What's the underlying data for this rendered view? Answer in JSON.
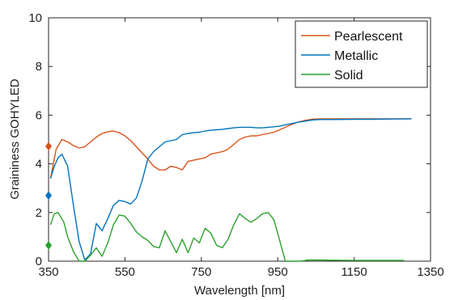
{
  "chart_data": {
    "type": "line",
    "title": "",
    "xlabel": "Wavelength [nm]",
    "ylabel": "Graininess GOHYLED",
    "xlim": [
      350,
      1350
    ],
    "ylim": [
      0,
      10
    ],
    "xticks": [
      350,
      550,
      750,
      950,
      1150,
      1350
    ],
    "yticks": [
      0,
      2,
      4,
      6,
      8,
      10
    ],
    "xtick_labels": [
      "350",
      "550",
      "750",
      "950",
      "1150",
      "1350"
    ],
    "ytick_labels": [
      "0",
      "2",
      "4",
      "6",
      "8",
      "10"
    ],
    "grid": false,
    "legend": {
      "position": "top-right",
      "entries": [
        "Pearlescent",
        "Metallic",
        "Solid"
      ]
    },
    "series": [
      {
        "name": "Pearlescent",
        "color": "#d95319",
        "x": [
          355,
          370,
          385,
          400,
          415,
          430,
          445,
          460,
          475,
          490,
          505,
          520,
          535,
          550,
          565,
          580,
          595,
          610,
          625,
          640,
          655,
          670,
          685,
          700,
          715,
          730,
          745,
          760,
          775,
          790,
          805,
          820,
          835,
          850,
          865,
          880,
          895,
          910,
          925,
          940,
          955,
          970,
          985,
          1000,
          1020,
          1040,
          1060,
          1100,
          1150,
          1200,
          1250,
          1300
        ],
        "values": [
          3.4,
          4.6,
          5.0,
          4.9,
          4.75,
          4.65,
          4.7,
          4.9,
          5.1,
          5.25,
          5.32,
          5.35,
          5.28,
          5.15,
          4.95,
          4.7,
          4.45,
          4.2,
          3.9,
          3.75,
          3.75,
          3.9,
          3.85,
          3.75,
          4.1,
          4.15,
          4.2,
          4.25,
          4.4,
          4.45,
          4.5,
          4.6,
          4.8,
          5.0,
          5.1,
          5.15,
          5.15,
          5.2,
          5.25,
          5.3,
          5.4,
          5.5,
          5.6,
          5.7,
          5.78,
          5.83,
          5.85,
          5.85,
          5.85,
          5.85,
          5.85,
          5.85
        ]
      },
      {
        "name": "Metallic",
        "color": "#0072bd",
        "x": [
          355,
          365,
          375,
          385,
          400,
          415,
          430,
          445,
          460,
          475,
          490,
          505,
          520,
          535,
          550,
          565,
          580,
          595,
          610,
          625,
          640,
          655,
          670,
          685,
          700,
          715,
          730,
          745,
          760,
          775,
          790,
          805,
          820,
          835,
          850,
          865,
          880,
          895,
          910,
          925,
          940,
          955,
          970,
          985,
          1000,
          1020,
          1040,
          1060,
          1100,
          1150,
          1200,
          1250,
          1300
        ],
        "values": [
          3.4,
          3.9,
          4.25,
          4.4,
          3.9,
          2.3,
          0.8,
          0.05,
          0.3,
          1.55,
          1.25,
          1.75,
          2.3,
          2.5,
          2.45,
          2.35,
          2.6,
          3.3,
          4.2,
          4.5,
          4.7,
          4.9,
          4.95,
          5.0,
          5.2,
          5.25,
          5.28,
          5.3,
          5.35,
          5.38,
          5.4,
          5.42,
          5.45,
          5.48,
          5.5,
          5.5,
          5.5,
          5.48,
          5.48,
          5.5,
          5.52,
          5.55,
          5.6,
          5.65,
          5.7,
          5.75,
          5.8,
          5.82,
          5.82,
          5.83,
          5.83,
          5.84,
          5.85
        ]
      },
      {
        "name": "Solid",
        "color": "#2ca02c",
        "x": [
          355,
          365,
          375,
          390,
          400,
          415,
          430,
          445,
          460,
          475,
          490,
          505,
          520,
          535,
          550,
          565,
          580,
          595,
          610,
          625,
          640,
          655,
          670,
          685,
          700,
          715,
          730,
          745,
          760,
          775,
          790,
          805,
          820,
          835,
          850,
          865,
          880,
          895,
          910,
          925,
          940,
          955,
          970,
          990,
          1010,
          1030,
          1060,
          1100,
          1150,
          1200,
          1250,
          1280
        ],
        "values": [
          1.5,
          1.95,
          2.0,
          1.6,
          1.0,
          0.4,
          0.0,
          0.0,
          0.25,
          0.55,
          0.2,
          0.75,
          1.5,
          1.9,
          1.85,
          1.55,
          1.2,
          1.0,
          0.85,
          0.6,
          0.55,
          1.25,
          0.8,
          0.35,
          0.9,
          0.35,
          0.95,
          0.75,
          1.35,
          1.15,
          0.65,
          0.55,
          0.9,
          1.5,
          1.95,
          1.75,
          1.6,
          1.75,
          1.95,
          2.0,
          1.7,
          0.85,
          0.0,
          0.0,
          0.0,
          0.05,
          0.05,
          0.04,
          0.03,
          0.03,
          0.03,
          0.03
        ]
      }
    ],
    "markers": [
      {
        "series": "Pearlescent",
        "x": 350,
        "y": 4.72,
        "shape": "diamond",
        "color": "#d95319"
      },
      {
        "series": "Metallic",
        "x": 350,
        "y": 2.7,
        "shape": "diamond",
        "color": "#0072bd"
      },
      {
        "series": "Solid",
        "x": 350,
        "y": 0.65,
        "shape": "diamond",
        "color": "#2ca02c"
      }
    ]
  }
}
